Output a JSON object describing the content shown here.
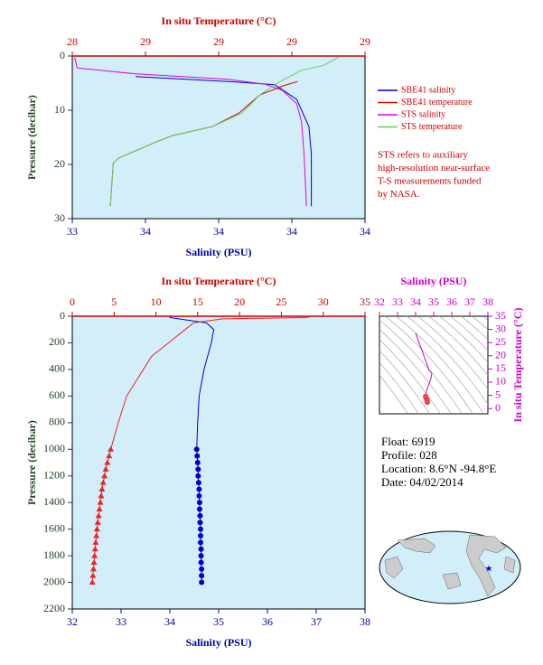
{
  "chart_data": [
    {
      "type": "profile",
      "xlabel": "Salinity (PSU)",
      "x_color": "#0000aa",
      "xlim": [
        33.2,
        34.4
      ],
      "xticks": [
        {
          "value": 33.2,
          "label": "33"
        },
        {
          "value": 33.5,
          "label": "34"
        },
        {
          "value": 33.8,
          "label": "34"
        },
        {
          "value": 34.1,
          "label": "34"
        },
        {
          "value": 34.4,
          "label": "34"
        }
      ],
      "x2label": "In situ Temperature (°C)",
      "x2_color": "#cc0000",
      "x2lim": [
        28.4,
        29.4
      ],
      "x2ticks": [
        {
          "value": 28.4,
          "label": "28"
        },
        {
          "value": 28.65,
          "label": "29"
        },
        {
          "value": 28.9,
          "label": "29"
        },
        {
          "value": 29.15,
          "label": "29"
        },
        {
          "value": 29.4,
          "label": "29"
        }
      ],
      "ylabel": "Pressure (decibar)",
      "y_color": "#224422",
      "ylim": [
        0,
        30
      ],
      "yticks": [
        0,
        10,
        20,
        30
      ],
      "y_reversed": true,
      "background": "#d2eef8",
      "series": [
        {
          "name": "SBE41 salinity",
          "color": "#0000cc",
          "axis": "x",
          "pressure": [
            3.8,
            4.7,
            5.3,
            8,
            13,
            18,
            27.7
          ],
          "values": [
            33.46,
            33.84,
            34.03,
            34.12,
            34.17,
            34.18,
            34.18
          ]
        },
        {
          "name": "SBE41 temperature",
          "color": "#dd0000",
          "axis": "x2",
          "pressure": [
            4.7,
            5.5,
            7.2,
            10.5,
            13,
            14.7,
            16,
            18.8,
            19.7,
            27.7
          ],
          "values": [
            29.17,
            29.12,
            29.04,
            28.97,
            28.88,
            28.74,
            28.68,
            28.56,
            28.54,
            28.53
          ]
        },
        {
          "name": "STS salinity",
          "color": "#dd00dd",
          "axis": "x",
          "pressure": [
            0.3,
            2.2,
            3.3,
            4.3,
            5.2,
            6.3,
            8.8,
            12.2,
            18,
            27.7
          ],
          "values": [
            33.21,
            33.22,
            33.46,
            33.84,
            33.99,
            34.06,
            34.12,
            34.14,
            34.15,
            34.16
          ]
        },
        {
          "name": "STS temperature",
          "color": "#66cc66",
          "axis": "x2",
          "pressure": [
            0.2,
            1.7,
            2.7,
            5,
            7.2,
            10.5,
            13,
            14.7,
            16,
            18.8,
            19.7,
            27.7
          ],
          "values": [
            29.31,
            29.26,
            29.18,
            29.1,
            29.04,
            28.98,
            28.88,
            28.74,
            28.68,
            28.56,
            28.54,
            28.53
          ]
        }
      ],
      "annotation": [
        "STS refers to auxiliary",
        "high-resolution near-surface",
        "T-S measurements funded",
        "by NASA."
      ],
      "annotation_color": "#cc0000"
    },
    {
      "type": "profile",
      "xlabel": "Salinity (PSU)",
      "x_color": "#0000aa",
      "xlim": [
        32,
        38
      ],
      "xticks": [
        32,
        33,
        34,
        35,
        36,
        37,
        38
      ],
      "x2label": "In situ Temperature (°C)",
      "x2_color": "#cc0000",
      "x2lim": [
        0,
        35
      ],
      "x2ticks": [
        0,
        5,
        10,
        15,
        20,
        25,
        30,
        35
      ],
      "ylabel": "Pressure (decibar)",
      "y_color": "#224422",
      "ylim": [
        0,
        2200
      ],
      "yticks": [
        0,
        200,
        400,
        600,
        800,
        1000,
        1200,
        1400,
        1600,
        1800,
        2000,
        2200
      ],
      "y_reversed": true,
      "background": "#d2eef8",
      "series": [
        {
          "color": "#0000cc",
          "axis": "x",
          "pressure": [
            0,
            10,
            50,
            100,
            200,
            400,
            600,
            800,
            1000
          ],
          "values": [
            34.0,
            34.0,
            34.75,
            34.9,
            34.85,
            34.7,
            34.6,
            34.57,
            34.55
          ]
        },
        {
          "color": "#0000cc",
          "axis": "x",
          "marker": "circle",
          "pressure": [
            1000,
            1050,
            1100,
            1150,
            1200,
            1250,
            1300,
            1350,
            1400,
            1450,
            1500,
            1550,
            1600,
            1650,
            1700,
            1750,
            1800,
            1850,
            1900,
            1950,
            2000
          ],
          "values": [
            34.55,
            34.56,
            34.57,
            34.58,
            34.58,
            34.59,
            34.6,
            34.6,
            34.61,
            34.61,
            34.62,
            34.62,
            34.63,
            34.63,
            34.63,
            34.64,
            34.64,
            34.64,
            34.65,
            34.65,
            34.65
          ]
        },
        {
          "color": "#ee2222",
          "axis": "x2",
          "pressure": [
            0,
            10,
            20,
            50,
            100,
            200,
            300,
            400,
            500,
            600,
            800,
            1000
          ],
          "values": [
            28.6,
            28,
            18,
            14.5,
            13.5,
            11.5,
            9.5,
            8.5,
            7.5,
            6.5,
            5.5,
            4.6
          ]
        },
        {
          "color": "#ee2222",
          "axis": "x2",
          "marker": "triangle",
          "pressure": [
            1000,
            1050,
            1100,
            1150,
            1200,
            1250,
            1300,
            1350,
            1400,
            1450,
            1500,
            1550,
            1600,
            1650,
            1700,
            1750,
            1800,
            1850,
            1900,
            1950,
            2000
          ],
          "values": [
            4.6,
            4.4,
            4.2,
            4.0,
            3.85,
            3.7,
            3.55,
            3.45,
            3.35,
            3.25,
            3.15,
            3.05,
            2.95,
            2.88,
            2.8,
            2.73,
            2.66,
            2.6,
            2.53,
            2.47,
            2.4
          ]
        }
      ]
    },
    {
      "type": "line",
      "xlabel": "Salinity (PSU)",
      "x_color": "#cc00cc",
      "xaxis_position": "top",
      "xlim": [
        32,
        38
      ],
      "xticks": [
        32,
        33,
        34,
        35,
        36,
        37,
        38
      ],
      "ylabel": "In situ Temperature (°C)",
      "y_color": "#cc00cc",
      "yaxis_position": "right",
      "ylim": [
        -2,
        35
      ],
      "yticks": [
        0,
        5,
        10,
        15,
        20,
        25,
        30,
        35
      ],
      "background": "#ffffff",
      "series": [
        {
          "color": "#cc00cc",
          "x": [
            34.0,
            34.75,
            34.9,
            34.85,
            34.7,
            34.6,
            34.55,
            34.65
          ],
          "values": [
            28.6,
            14.5,
            13.5,
            11.5,
            8.5,
            6.5,
            4.6,
            2.4
          ]
        },
        {
          "color": "#ee4444",
          "marker": "circle",
          "x": [
            34.55,
            34.6,
            34.62,
            34.64,
            34.65
          ],
          "values": [
            4.6,
            3.8,
            3.4,
            3.0,
            2.4
          ]
        }
      ]
    }
  ],
  "info": [
    "Float:  6919",
    "Profile:  028",
    "Location:  8.6°N  -94.8°E",
    "Date:  04/02/2014"
  ]
}
